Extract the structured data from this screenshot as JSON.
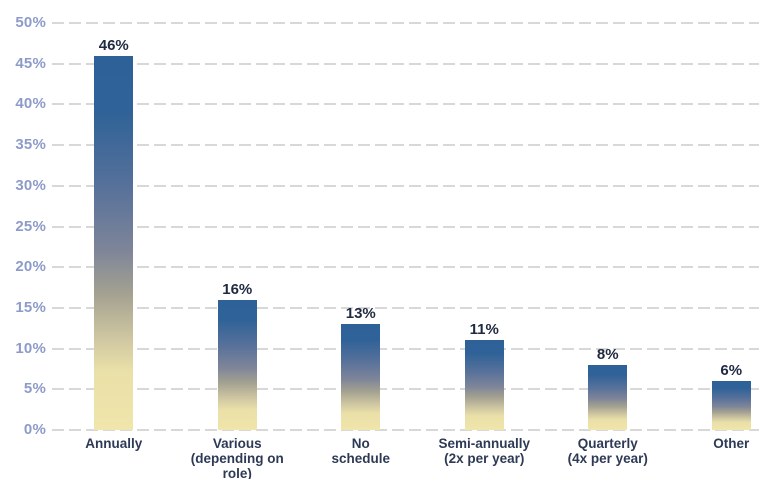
{
  "chart_data": {
    "type": "bar",
    "title": "",
    "xlabel": "",
    "ylabel": "",
    "categories": [
      "Annually",
      "Various\n(depending on role)",
      "No\nschedule",
      "Semi-annually\n(2x per year)",
      "Quarterly\n(4x per year)",
      "Other"
    ],
    "values": [
      46,
      16,
      13,
      11,
      8,
      6
    ],
    "value_labels": [
      "46%",
      "16%",
      "13%",
      "11%",
      "8%",
      "6%"
    ],
    "ylim": [
      0,
      50
    ],
    "ytick_step": 5,
    "ytick_labels": [
      "0%",
      "5%",
      "10%",
      "15%",
      "20%",
      "25%",
      "30%",
      "35%",
      "40%",
      "45%",
      "50%"
    ],
    "grid": "horizontal-dashed",
    "legend": "none",
    "colors": {
      "background": "#ffffff",
      "gridline": "#d8d8d8",
      "ytick_label": "#8d9bca",
      "value_label": "#1f2940",
      "category_label": "#2e3a55",
      "bar_gradient_stops": [
        "#2e6197 0%",
        "#2f6298 15%",
        "#57719a 35%",
        "#7e8599 52%",
        "#a5a291 64%",
        "#cdc5a1 75%",
        "#e9dfa8 84%",
        "#f0e6ab 100%"
      ]
    }
  }
}
